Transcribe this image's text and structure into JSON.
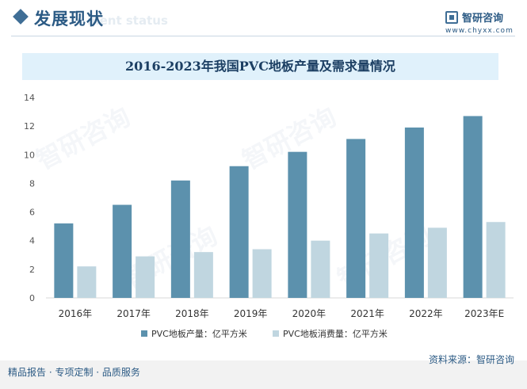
{
  "header": {
    "section_title": "发展现状",
    "section_title_ghost": "ment status",
    "logo_name": "智研咨询",
    "logo_url": "www.chyxx.com"
  },
  "watermark_text": "智研咨询",
  "footer": {
    "left": "精品报告 · 专项定制 · 品质服务",
    "right": "资料来源：智研咨询"
  },
  "colors": {
    "production": "#5c91ad",
    "consumption": "#c0d6e0",
    "title_band": "#e0f1fb",
    "accent": "#2b5a84"
  },
  "chart_data": {
    "type": "bar",
    "title": "2016-2023年我国PVC地板产量及需求量情况",
    "categories": [
      "2016年",
      "2017年",
      "2018年",
      "2019年",
      "2020年",
      "2021年",
      "2022年",
      "2023年E"
    ],
    "series": [
      {
        "name": "PVC地板产量：亿平方米",
        "values": [
          5.2,
          6.5,
          8.2,
          9.2,
          10.2,
          11.1,
          11.9,
          12.7
        ]
      },
      {
        "name": "PVC地板消费量：亿平方米",
        "values": [
          2.2,
          2.9,
          3.2,
          3.4,
          4.0,
          4.5,
          4.9,
          5.3
        ]
      }
    ],
    "y_ticks": [
      0,
      2,
      4,
      6,
      8,
      10,
      12,
      14
    ],
    "ylim": [
      0,
      14
    ],
    "grid": false,
    "legend_position": "bottom"
  }
}
